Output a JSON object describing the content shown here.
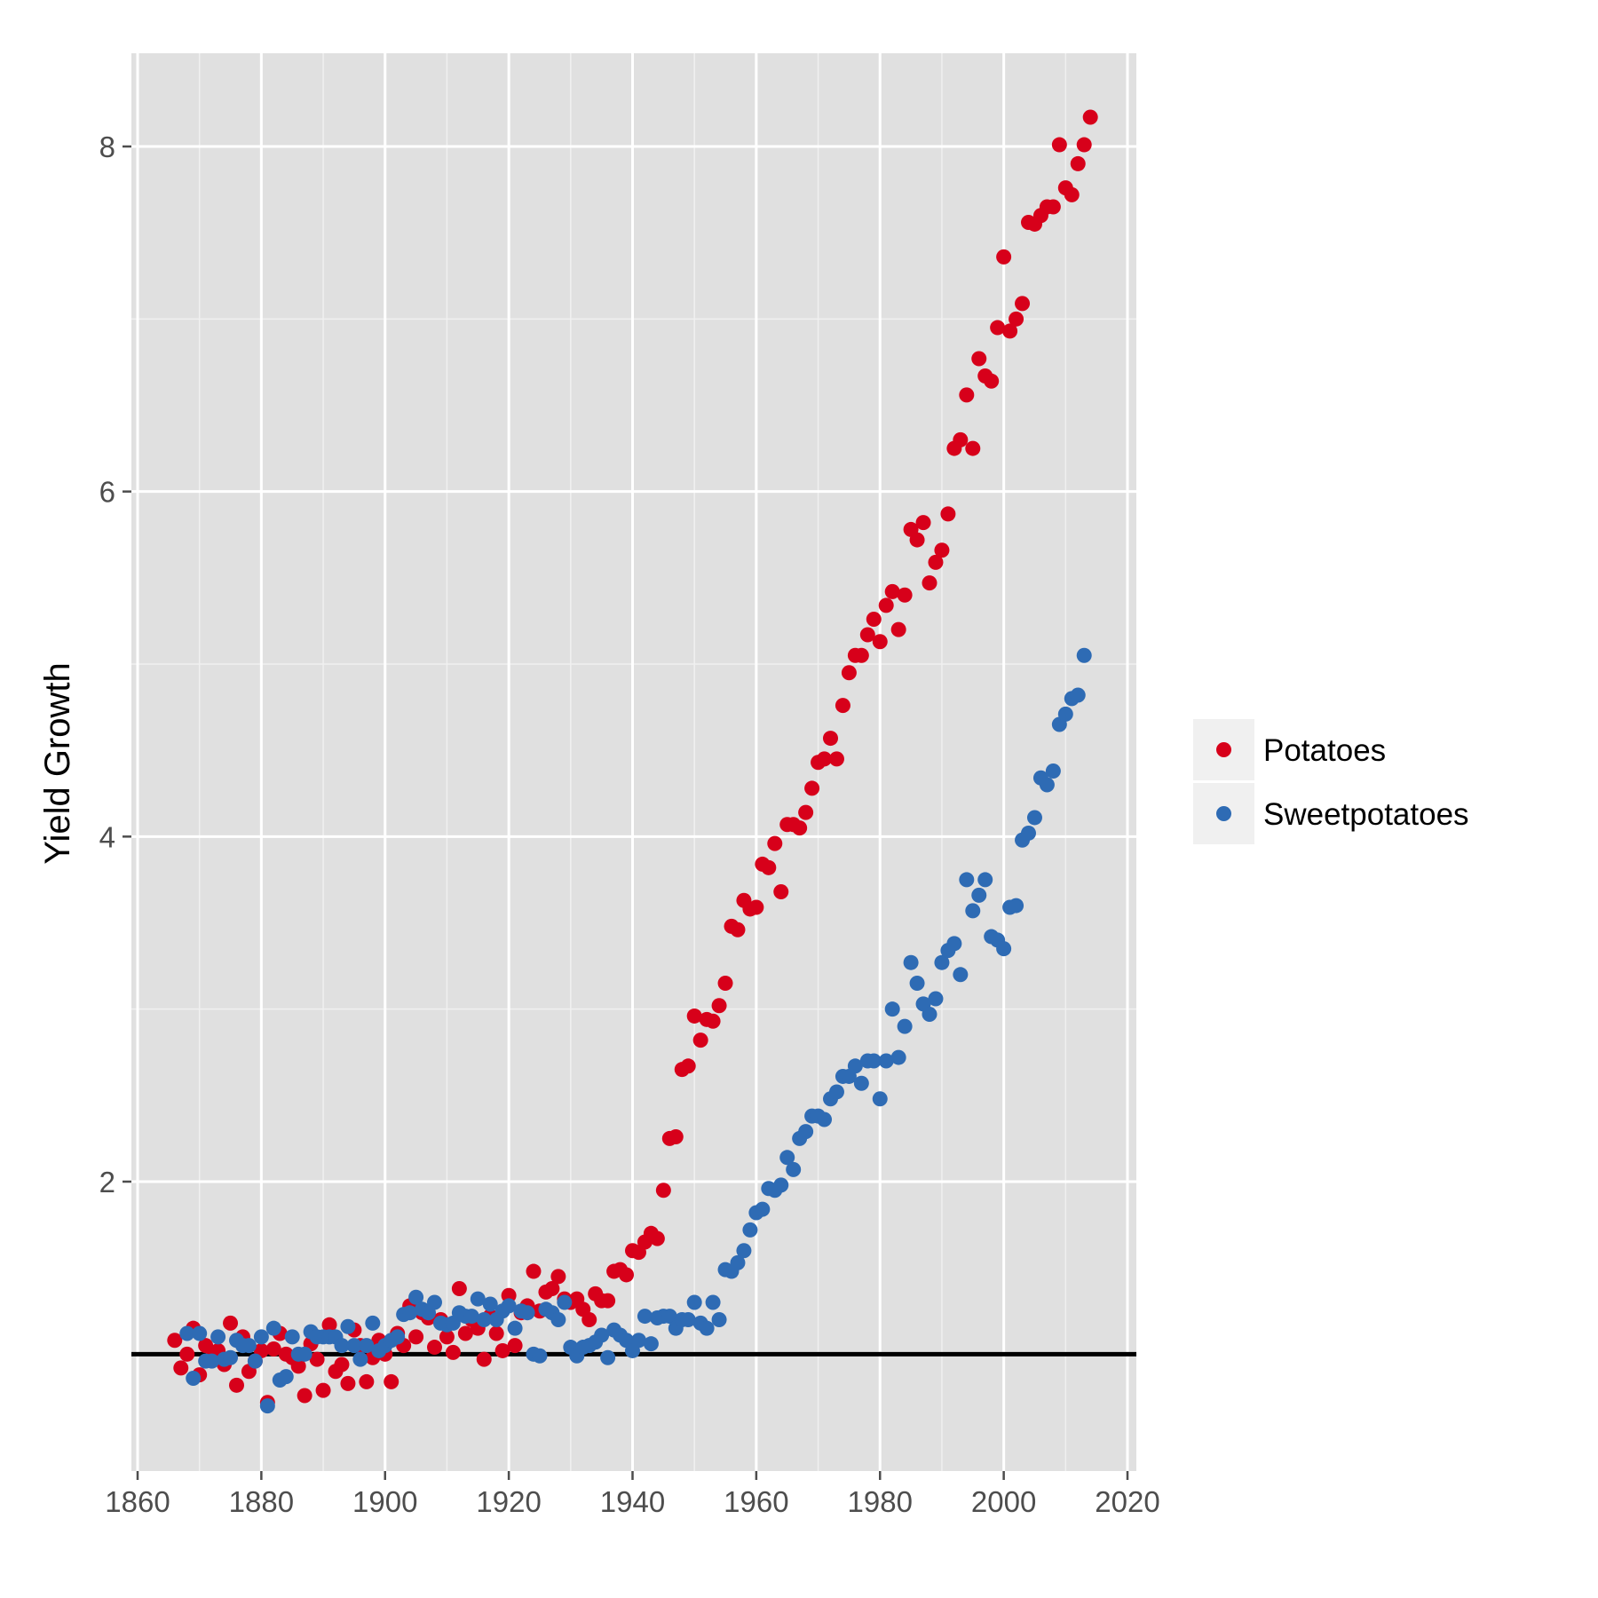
{
  "chart_data": {
    "type": "scatter",
    "title": "",
    "xlabel": "",
    "ylabel": "Yield Growth",
    "xlim": [
      1859,
      2021
    ],
    "ylim": [
      0.35,
      8.55
    ],
    "xticks": [
      1860,
      1880,
      1900,
      1920,
      1940,
      1960,
      1980,
      2000,
      2020
    ],
    "xtick_labels": [
      "1860",
      "1880",
      "1900",
      "1920",
      "1940",
      "1960",
      "1980",
      "2000",
      "2020"
    ],
    "yticks": [
      2,
      4,
      6,
      8
    ],
    "ytick_labels": [
      "2",
      "4",
      "6",
      "8"
    ],
    "grid": true,
    "background": "#e0e0e0",
    "gridline_color": "#ffffff",
    "reference_line": {
      "y": 1.0,
      "color": "#000000"
    },
    "legend": {
      "position": "right",
      "title": ""
    },
    "series": [
      {
        "name": "Potatoes",
        "color": "#d7001a",
        "points": [
          [
            1866,
            1.08
          ],
          [
            1867,
            0.92
          ],
          [
            1868,
            1.0
          ],
          [
            1869,
            1.15
          ],
          [
            1870,
            0.88
          ],
          [
            1871,
            1.05
          ],
          [
            1872,
            0.98
          ],
          [
            1873,
            1.02
          ],
          [
            1874,
            0.94
          ],
          [
            1875,
            1.18
          ],
          [
            1876,
            0.82
          ],
          [
            1877,
            1.1
          ],
          [
            1878,
            0.9
          ],
          [
            1879,
            0.96
          ],
          [
            1880,
            1.02
          ],
          [
            1881,
            0.72
          ],
          [
            1882,
            1.03
          ],
          [
            1883,
            1.12
          ],
          [
            1884,
            1.0
          ],
          [
            1885,
            0.98
          ],
          [
            1886,
            0.93
          ],
          [
            1887,
            0.76
          ],
          [
            1888,
            1.06
          ],
          [
            1889,
            0.97
          ],
          [
            1890,
            0.79
          ],
          [
            1891,
            1.17
          ],
          [
            1892,
            0.9
          ],
          [
            1893,
            0.94
          ],
          [
            1894,
            0.83
          ],
          [
            1895,
            1.14
          ],
          [
            1896,
            1.05
          ],
          [
            1897,
            0.84
          ],
          [
            1898,
            0.98
          ],
          [
            1899,
            1.08
          ],
          [
            1900,
            1.0
          ],
          [
            1901,
            0.84
          ],
          [
            1902,
            1.12
          ],
          [
            1903,
            1.05
          ],
          [
            1904,
            1.28
          ],
          [
            1905,
            1.1
          ],
          [
            1906,
            1.24
          ],
          [
            1907,
            1.21
          ],
          [
            1908,
            1.04
          ],
          [
            1909,
            1.2
          ],
          [
            1910,
            1.1
          ],
          [
            1911,
            1.01
          ],
          [
            1912,
            1.38
          ],
          [
            1913,
            1.12
          ],
          [
            1914,
            1.2
          ],
          [
            1915,
            1.15
          ],
          [
            1916,
            0.97
          ],
          [
            1917,
            1.22
          ],
          [
            1918,
            1.12
          ],
          [
            1919,
            1.02
          ],
          [
            1920,
            1.34
          ],
          [
            1921,
            1.05
          ],
          [
            1922,
            1.24
          ],
          [
            1923,
            1.28
          ],
          [
            1924,
            1.48
          ],
          [
            1925,
            1.25
          ],
          [
            1926,
            1.36
          ],
          [
            1927,
            1.38
          ],
          [
            1928,
            1.45
          ],
          [
            1929,
            1.32
          ],
          [
            1930,
            1.3
          ],
          [
            1931,
            1.32
          ],
          [
            1932,
            1.26
          ],
          [
            1933,
            1.2
          ],
          [
            1934,
            1.35
          ],
          [
            1935,
            1.31
          ],
          [
            1936,
            1.31
          ],
          [
            1937,
            1.48
          ],
          [
            1938,
            1.49
          ],
          [
            1939,
            1.46
          ],
          [
            1940,
            1.6
          ],
          [
            1941,
            1.59
          ],
          [
            1942,
            1.65
          ],
          [
            1943,
            1.7
          ],
          [
            1944,
            1.67
          ],
          [
            1945,
            1.95
          ],
          [
            1946,
            2.25
          ],
          [
            1947,
            2.26
          ],
          [
            1948,
            2.65
          ],
          [
            1949,
            2.67
          ],
          [
            1950,
            2.96
          ],
          [
            1951,
            2.82
          ],
          [
            1952,
            2.94
          ],
          [
            1953,
            2.93
          ],
          [
            1954,
            3.02
          ],
          [
            1955,
            3.15
          ],
          [
            1956,
            3.48
          ],
          [
            1957,
            3.46
          ],
          [
            1958,
            3.63
          ],
          [
            1959,
            3.58
          ],
          [
            1960,
            3.59
          ],
          [
            1961,
            3.84
          ],
          [
            1962,
            3.82
          ],
          [
            1963,
            3.96
          ],
          [
            1964,
            3.68
          ],
          [
            1965,
            4.07
          ],
          [
            1966,
            4.07
          ],
          [
            1967,
            4.05
          ],
          [
            1968,
            4.14
          ],
          [
            1969,
            4.28
          ],
          [
            1970,
            4.43
          ],
          [
            1971,
            4.45
          ],
          [
            1972,
            4.57
          ],
          [
            1973,
            4.45
          ],
          [
            1974,
            4.76
          ],
          [
            1975,
            4.95
          ],
          [
            1976,
            5.05
          ],
          [
            1977,
            5.05
          ],
          [
            1978,
            5.17
          ],
          [
            1979,
            5.26
          ],
          [
            1980,
            5.13
          ],
          [
            1981,
            5.34
          ],
          [
            1982,
            5.42
          ],
          [
            1983,
            5.2
          ],
          [
            1984,
            5.4
          ],
          [
            1985,
            5.78
          ],
          [
            1986,
            5.72
          ],
          [
            1987,
            5.82
          ],
          [
            1988,
            5.47
          ],
          [
            1989,
            5.59
          ],
          [
            1990,
            5.66
          ],
          [
            1991,
            5.87
          ],
          [
            1992,
            6.25
          ],
          [
            1993,
            6.3
          ],
          [
            1994,
            6.56
          ],
          [
            1995,
            6.25
          ],
          [
            1996,
            6.77
          ],
          [
            1997,
            6.67
          ],
          [
            1998,
            6.64
          ],
          [
            1999,
            6.95
          ],
          [
            2000,
            7.36
          ],
          [
            2001,
            6.93
          ],
          [
            2002,
            7.0
          ],
          [
            2003,
            7.09
          ],
          [
            2004,
            7.56
          ],
          [
            2005,
            7.55
          ],
          [
            2006,
            7.6
          ],
          [
            2007,
            7.65
          ],
          [
            2008,
            7.65
          ],
          [
            2009,
            8.01
          ],
          [
            2010,
            7.76
          ],
          [
            2011,
            7.72
          ],
          [
            2012,
            7.9
          ],
          [
            2013,
            8.01
          ],
          [
            2014,
            8.17
          ]
        ]
      },
      {
        "name": "Sweetpotatoes",
        "color": "#2e6bb4",
        "points": [
          [
            1868,
            1.12
          ],
          [
            1869,
            0.86
          ],
          [
            1870,
            1.12
          ],
          [
            1871,
            0.96
          ],
          [
            1872,
            0.96
          ],
          [
            1873,
            1.1
          ],
          [
            1874,
            0.97
          ],
          [
            1875,
            0.98
          ],
          [
            1876,
            1.08
          ],
          [
            1877,
            1.05
          ],
          [
            1878,
            1.05
          ],
          [
            1879,
            0.96
          ],
          [
            1880,
            1.1
          ],
          [
            1881,
            0.7
          ],
          [
            1882,
            1.15
          ],
          [
            1883,
            0.85
          ],
          [
            1884,
            0.87
          ],
          [
            1885,
            1.1
          ],
          [
            1886,
            1.0
          ],
          [
            1887,
            1.0
          ],
          [
            1888,
            1.13
          ],
          [
            1889,
            1.1
          ],
          [
            1890,
            1.1
          ],
          [
            1891,
            1.1
          ],
          [
            1892,
            1.1
          ],
          [
            1893,
            1.05
          ],
          [
            1894,
            1.16
          ],
          [
            1895,
            1.05
          ],
          [
            1896,
            0.97
          ],
          [
            1897,
            1.05
          ],
          [
            1898,
            1.18
          ],
          [
            1899,
            1.02
          ],
          [
            1900,
            1.05
          ],
          [
            1901,
            1.08
          ],
          [
            1902,
            1.1
          ],
          [
            1903,
            1.23
          ],
          [
            1904,
            1.24
          ],
          [
            1905,
            1.33
          ],
          [
            1906,
            1.26
          ],
          [
            1907,
            1.24
          ],
          [
            1908,
            1.3
          ],
          [
            1909,
            1.18
          ],
          [
            1910,
            1.17
          ],
          [
            1911,
            1.18
          ],
          [
            1912,
            1.24
          ],
          [
            1913,
            1.22
          ],
          [
            1914,
            1.22
          ],
          [
            1915,
            1.32
          ],
          [
            1916,
            1.2
          ],
          [
            1917,
            1.29
          ],
          [
            1918,
            1.2
          ],
          [
            1919,
            1.25
          ],
          [
            1920,
            1.28
          ],
          [
            1921,
            1.15
          ],
          [
            1922,
            1.25
          ],
          [
            1923,
            1.24
          ],
          [
            1924,
            1.0
          ],
          [
            1925,
            0.99
          ],
          [
            1926,
            1.26
          ],
          [
            1927,
            1.24
          ],
          [
            1928,
            1.2
          ],
          [
            1929,
            1.3
          ],
          [
            1930,
            1.04
          ],
          [
            1931,
            0.99
          ],
          [
            1932,
            1.04
          ],
          [
            1933,
            1.05
          ],
          [
            1934,
            1.07
          ],
          [
            1935,
            1.11
          ],
          [
            1936,
            0.98
          ],
          [
            1937,
            1.14
          ],
          [
            1938,
            1.11
          ],
          [
            1939,
            1.08
          ],
          [
            1940,
            1.02
          ],
          [
            1941,
            1.08
          ],
          [
            1942,
            1.22
          ],
          [
            1943,
            1.06
          ],
          [
            1944,
            1.21
          ],
          [
            1945,
            1.22
          ],
          [
            1946,
            1.22
          ],
          [
            1947,
            1.15
          ],
          [
            1948,
            1.2
          ],
          [
            1949,
            1.2
          ],
          [
            1950,
            1.3
          ],
          [
            1951,
            1.18
          ],
          [
            1952,
            1.15
          ],
          [
            1953,
            1.3
          ],
          [
            1954,
            1.2
          ],
          [
            1955,
            1.49
          ],
          [
            1956,
            1.48
          ],
          [
            1957,
            1.53
          ],
          [
            1958,
            1.6
          ],
          [
            1959,
            1.72
          ],
          [
            1960,
            1.82
          ],
          [
            1961,
            1.84
          ],
          [
            1962,
            1.96
          ],
          [
            1963,
            1.95
          ],
          [
            1964,
            1.98
          ],
          [
            1965,
            2.14
          ],
          [
            1966,
            2.07
          ],
          [
            1967,
            2.25
          ],
          [
            1968,
            2.29
          ],
          [
            1969,
            2.38
          ],
          [
            1970,
            2.38
          ],
          [
            1971,
            2.36
          ],
          [
            1972,
            2.48
          ],
          [
            1973,
            2.52
          ],
          [
            1974,
            2.61
          ],
          [
            1975,
            2.61
          ],
          [
            1976,
            2.67
          ],
          [
            1977,
            2.57
          ],
          [
            1978,
            2.7
          ],
          [
            1979,
            2.7
          ],
          [
            1980,
            2.48
          ],
          [
            1981,
            2.7
          ],
          [
            1982,
            3.0
          ],
          [
            1983,
            2.72
          ],
          [
            1984,
            2.9
          ],
          [
            1985,
            3.27
          ],
          [
            1986,
            3.15
          ],
          [
            1987,
            3.03
          ],
          [
            1988,
            2.97
          ],
          [
            1989,
            3.06
          ],
          [
            1990,
            3.27
          ],
          [
            1991,
            3.34
          ],
          [
            1992,
            3.38
          ],
          [
            1993,
            3.2
          ],
          [
            1994,
            3.75
          ],
          [
            1995,
            3.57
          ],
          [
            1996,
            3.66
          ],
          [
            1997,
            3.75
          ],
          [
            1998,
            3.42
          ],
          [
            1999,
            3.4
          ],
          [
            2000,
            3.35
          ],
          [
            2001,
            3.59
          ],
          [
            2002,
            3.6
          ],
          [
            2003,
            3.98
          ],
          [
            2004,
            4.02
          ],
          [
            2005,
            4.11
          ],
          [
            2006,
            4.34
          ],
          [
            2007,
            4.3
          ],
          [
            2008,
            4.38
          ],
          [
            2009,
            4.65
          ],
          [
            2010,
            4.71
          ],
          [
            2011,
            4.8
          ],
          [
            2012,
            4.82
          ],
          [
            2013,
            5.05
          ]
        ]
      }
    ]
  }
}
